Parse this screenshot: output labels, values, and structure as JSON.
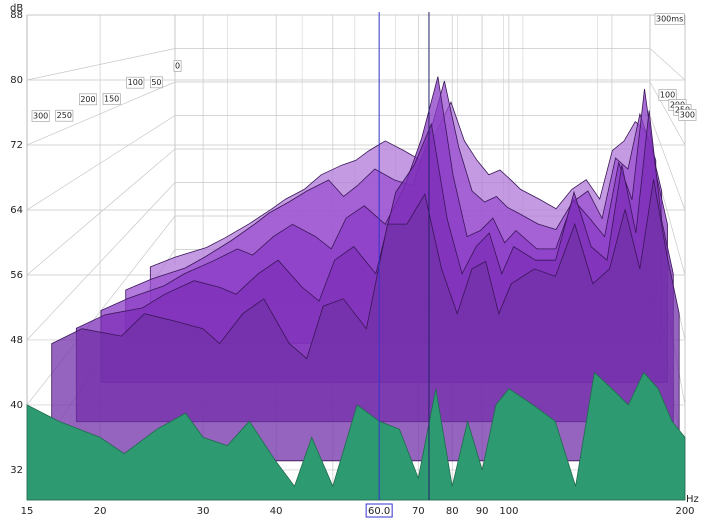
{
  "chart_data": {
    "type": "waterfall",
    "y_unit": "dB",
    "x_unit": "Hz",
    "ylim": [
      28.3,
      88
    ],
    "yticks": [
      32,
      40,
      48,
      56,
      64,
      72,
      80,
      88
    ],
    "xlim": [
      15,
      200
    ],
    "xticks": [
      15,
      20,
      30,
      40,
      70,
      80,
      90,
      100,
      200
    ],
    "xminor": [
      50,
      60,
      150
    ],
    "log_x": true,
    "grid": true,
    "zlim": [
      0,
      300
    ],
    "zticks": [
      0,
      50,
      100,
      150,
      200,
      250,
      300
    ],
    "zticks_right": [
      100,
      200,
      250,
      300
    ],
    "ztop": {
      "value": 300,
      "label": "300ms"
    },
    "cursor": {
      "value": 60,
      "label": "60.0"
    },
    "cursor2": 73,
    "x": [
      15,
      17,
      20,
      22,
      25,
      28,
      30,
      33,
      36,
      40,
      43,
      46,
      50,
      55,
      60,
      65,
      70,
      75,
      80,
      85,
      90,
      95,
      100,
      110,
      120,
      130,
      140,
      150,
      160,
      170,
      180,
      190,
      200
    ],
    "series": [
      {
        "time": 250,
        "color": "#b07ad8",
        "values": [
          36,
          38,
          40,
          42,
          45,
          48,
          50,
          52,
          55,
          57,
          58,
          60,
          62,
          60,
          58,
          64,
          70,
          62,
          58,
          55,
          56,
          54,
          52,
          50,
          48,
          52,
          54,
          50,
          60,
          62,
          66,
          64,
          58
        ]
      },
      {
        "time": 200,
        "color": "#9a4fd0",
        "values": [
          38,
          40,
          42,
          44,
          47,
          50,
          52,
          54,
          56,
          58,
          55,
          57,
          60,
          58,
          57,
          66,
          76,
          64,
          56,
          54,
          55,
          53,
          52,
          50,
          49,
          54,
          56,
          51,
          62,
          60,
          70,
          64,
          56
        ]
      },
      {
        "time": 150,
        "color": "#8a3bc4",
        "values": [
          40,
          42,
          44,
          46,
          48,
          50,
          49,
          52,
          54,
          52,
          50,
          55,
          57,
          54,
          60,
          68,
          78,
          62,
          52,
          53,
          55,
          51,
          53,
          50,
          50,
          58,
          55,
          52,
          64,
          58,
          76,
          62,
          54
        ]
      },
      {
        "time": 100,
        "color": "#7d2fb8",
        "values": [
          42,
          44,
          45,
          47,
          49,
          48,
          47,
          50,
          52,
          48,
          46,
          52,
          54,
          50,
          62,
          66,
          72,
          58,
          50,
          54,
          56,
          50,
          54,
          52,
          52,
          62,
          54,
          52,
          66,
          56,
          74,
          58,
          50
        ]
      },
      {
        "time": 50,
        "color": "#7230a8",
        "values": [
          44,
          46,
          45,
          48,
          47,
          46,
          44,
          48,
          50,
          44,
          42,
          49,
          50,
          46,
          60,
          60,
          64,
          54,
          48,
          54,
          55,
          48,
          52,
          54,
          53,
          60,
          52,
          54,
          62,
          54,
          66,
          56,
          48
        ]
      },
      {
        "time": 0,
        "color": "#2e9a72",
        "values": [
          40,
          38,
          36,
          34,
          37,
          39,
          36,
          35,
          38,
          33,
          30,
          36,
          30,
          40,
          38,
          37,
          31,
          42,
          30,
          38,
          32,
          40,
          42,
          40,
          38,
          30,
          44,
          42,
          40,
          44,
          42,
          38,
          36
        ]
      }
    ]
  }
}
